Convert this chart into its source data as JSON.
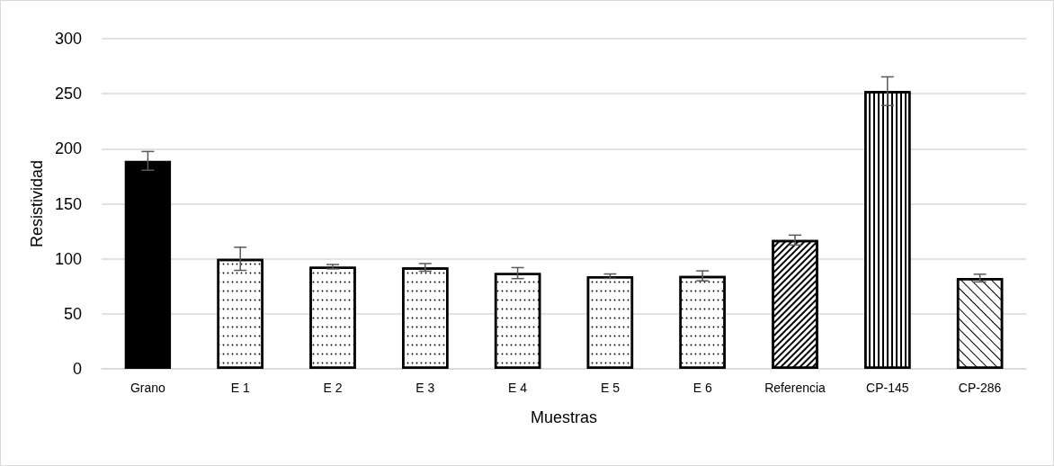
{
  "chart_data": {
    "type": "bar",
    "xlabel": "Muestras",
    "ylabel": "Resistividad",
    "categories": [
      "Grano",
      "E 1",
      "E 2",
      "E 3",
      "E 4",
      "E 5",
      "E 6",
      "Referencia",
      "CP-145",
      "CP-286"
    ],
    "values": [
      189,
      100,
      92.8,
      92.2,
      87,
      84.2,
      84.5,
      117,
      252.3,
      82.5
    ],
    "errors": [
      8.5,
      10.5,
      2,
      3.5,
      5,
      2,
      4.5,
      4.5,
      13,
      3.5
    ],
    "colors": [
      "#000000",
      "#ffffff",
      "#ffffff",
      "#ffffff",
      "#ffffff",
      "#ffffff",
      "#ffffff",
      "#ffffff",
      "#ffffff",
      "#ffffff"
    ],
    "ylim": [
      0,
      300
    ],
    "yticks": [
      0,
      50,
      100,
      150,
      200,
      250,
      300
    ],
    "grid": "y"
  }
}
